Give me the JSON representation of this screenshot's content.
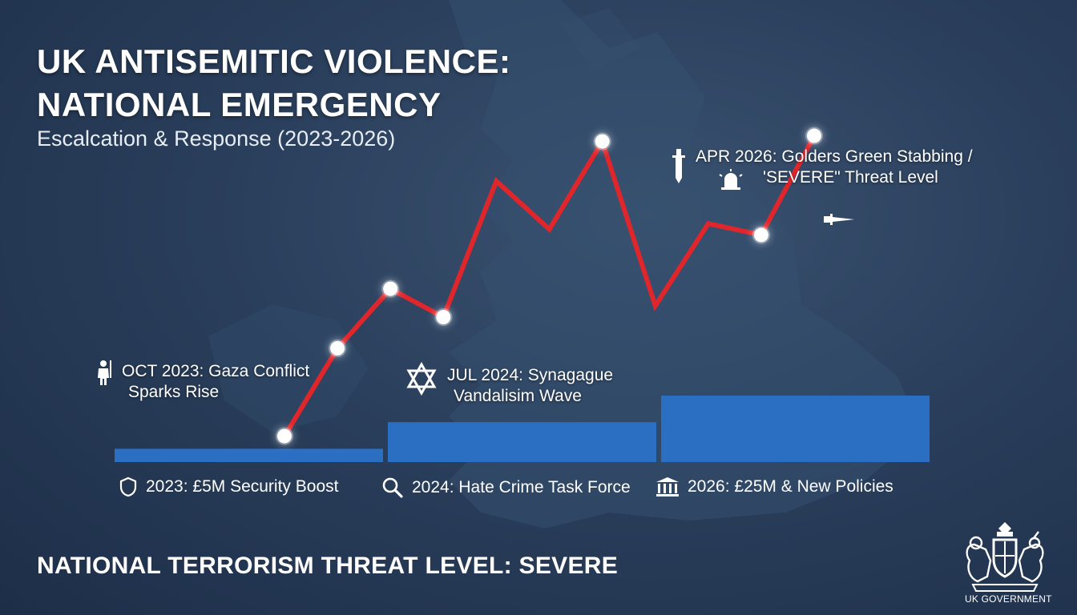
{
  "header": {
    "title_line1": "UK ANTISEMITIC VIOLENCE:",
    "title_line2": "NATIONAL EMERGENCY",
    "subtitle": "Escalcation & Response (2023-2026)"
  },
  "annotations": [
    {
      "line1": "OCT 2023: Gaza Conflict",
      "line2": "Sparks Rise",
      "icon": "protester-icon"
    },
    {
      "line1": "JUL 2024: Synagague",
      "line2": "Vandalisim Wave",
      "icon": "star-of-david-icon"
    },
    {
      "line1": "APR 2026: Golders Green Stabbing /",
      "line2": "'SEVERE\" Threat Level",
      "icon": "dagger-icon"
    }
  ],
  "funding": [
    {
      "label": "2023: £5M Security Boost",
      "icon": "shield-icon"
    },
    {
      "label": "2024: Hate Crime Task Force",
      "icon": "magnifier-icon"
    },
    {
      "label": "2026: £25M & New Policies",
      "icon": "government-building-icon"
    }
  ],
  "footer": {
    "threat_level": "NATIONAL TERRORISM THREAT LEVEL: SEVERE",
    "logo_text": "UK GOVERNMENT"
  },
  "colors": {
    "line": "#e0262b",
    "bars": "#2a6fc2",
    "marker": "#ffffff"
  },
  "chart_data": {
    "type": "line",
    "points": [
      {
        "y": 1.0,
        "marker": true
      },
      {
        "y": 4.1,
        "marker": true
      },
      {
        "y": 6.2,
        "marker": true
      },
      {
        "y": 5.2,
        "marker": true
      },
      {
        "y": 10.0,
        "marker": false
      },
      {
        "y": 8.3,
        "marker": false
      },
      {
        "y": 11.4,
        "marker": true
      },
      {
        "y": 5.6,
        "marker": false
      },
      {
        "y": 8.5,
        "marker": false
      },
      {
        "y": 8.1,
        "marker": true
      },
      {
        "y": 11.6,
        "marker": true
      }
    ],
    "ylim": [
      0,
      13
    ],
    "bars": {
      "type": "bar",
      "categories": [
        "2023",
        "2024",
        "2026"
      ],
      "values": [
        5,
        15,
        25
      ],
      "ylim": [
        0,
        25
      ]
    }
  }
}
